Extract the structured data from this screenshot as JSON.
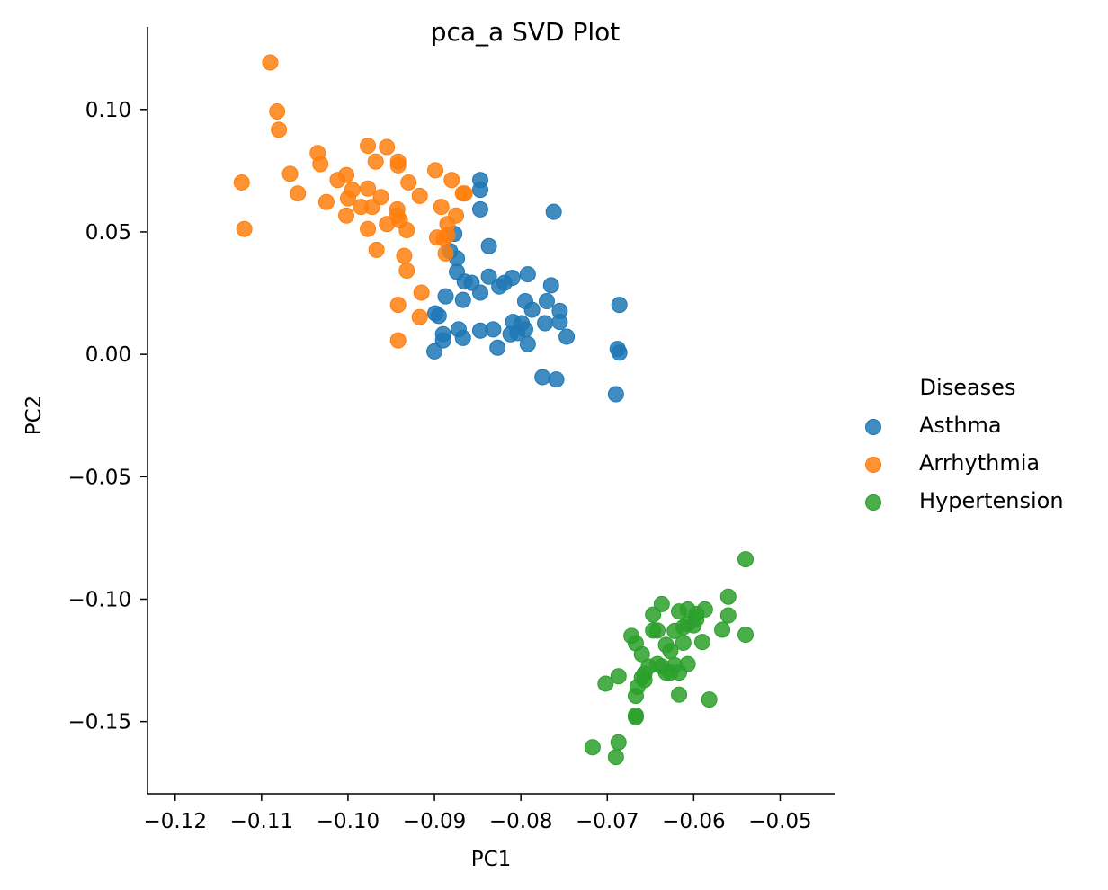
{
  "chart_data": {
    "type": "scatter",
    "title": "pca_a SVD Plot",
    "xlabel": "PC1",
    "ylabel": "PC2",
    "xlim": [
      -0.1232,
      -0.0437
    ],
    "ylim": [
      -0.1795,
      0.1337
    ],
    "xticks": [
      -0.12,
      -0.11,
      -0.1,
      -0.09,
      -0.08,
      -0.07,
      -0.06,
      -0.05
    ],
    "xtick_labels": [
      "−0.12",
      "−0.11",
      "−0.10",
      "−0.09",
      "−0.08",
      "−0.07",
      "−0.06",
      "−0.05"
    ],
    "yticks": [
      0.1,
      0.05,
      0.0,
      -0.05,
      -0.1,
      -0.15
    ],
    "ytick_labels": [
      "0.10",
      "0.05",
      "0.00",
      "−0.05",
      "−0.10",
      "−0.15"
    ],
    "grid": false,
    "legend": {
      "title": "Diseases",
      "position": "right"
    },
    "series": [
      {
        "name": "Asthma",
        "color": "#1f77b4",
        "points": [
          [
            -0.0847,
            0.0712
          ],
          [
            -0.0847,
            0.0672
          ],
          [
            -0.0847,
            0.0592
          ],
          [
            -0.0837,
            0.0442
          ],
          [
            -0.0762,
            0.0582
          ],
          [
            -0.0877,
            0.0492
          ],
          [
            -0.0882,
            0.0422
          ],
          [
            -0.0874,
            0.0392
          ],
          [
            -0.0874,
            0.0337
          ],
          [
            -0.0865,
            0.0297
          ],
          [
            -0.0857,
            0.0292
          ],
          [
            -0.0837,
            0.0317
          ],
          [
            -0.0847,
            0.0252
          ],
          [
            -0.0825,
            0.0277
          ],
          [
            -0.0819,
            0.0292
          ],
          [
            -0.081,
            0.0312
          ],
          [
            -0.0792,
            0.0327
          ],
          [
            -0.0765,
            0.0282
          ],
          [
            -0.077,
            0.0217
          ],
          [
            -0.0795,
            0.0217
          ],
          [
            -0.0787,
            0.0182
          ],
          [
            -0.0755,
            0.0177
          ],
          [
            -0.0755,
            0.0132
          ],
          [
            -0.0747,
            0.0072
          ],
          [
            -0.0772,
            0.0127
          ],
          [
            -0.0799,
            0.0127
          ],
          [
            -0.0809,
            0.0132
          ],
          [
            -0.0804,
            0.0087
          ],
          [
            -0.0795,
            0.0102
          ],
          [
            -0.0812,
            0.0082
          ],
          [
            -0.0792,
            0.0042
          ],
          [
            -0.0827,
            0.0027
          ],
          [
            -0.0832,
            0.0102
          ],
          [
            -0.0847,
            0.0097
          ],
          [
            -0.0867,
            0.0067
          ],
          [
            -0.0872,
            0.0102
          ],
          [
            -0.0867,
            0.0222
          ],
          [
            -0.0887,
            0.0237
          ],
          [
            -0.0895,
            0.0157
          ],
          [
            -0.0899,
            0.0167
          ],
          [
            -0.089,
            0.0082
          ],
          [
            -0.089,
            0.0057
          ],
          [
            -0.09,
            0.0012
          ],
          [
            -0.0775,
            -0.0093
          ],
          [
            -0.0759,
            -0.0103
          ],
          [
            -0.069,
            -0.0163
          ],
          [
            -0.0686,
            0.0202
          ],
          [
            -0.0688,
            0.0022
          ],
          [
            -0.0686,
            0.0007
          ]
        ]
      },
      {
        "name": "Arrhythmia",
        "color": "#ff7f0e",
        "points": [
          [
            -0.109,
            0.1192
          ],
          [
            -0.1082,
            0.0992
          ],
          [
            -0.108,
            0.0917
          ],
          [
            -0.1123,
            0.0702
          ],
          [
            -0.112,
            0.0512
          ],
          [
            -0.1067,
            0.0737
          ],
          [
            -0.1058,
            0.0657
          ],
          [
            -0.1035,
            0.0822
          ],
          [
            -0.1032,
            0.0777
          ],
          [
            -0.1025,
            0.0622
          ],
          [
            -0.1012,
            0.0712
          ],
          [
            -0.1002,
            0.0732
          ],
          [
            -0.0995,
            0.0672
          ],
          [
            -0.1,
            0.0637
          ],
          [
            -0.1002,
            0.0567
          ],
          [
            -0.0985,
            0.0602
          ],
          [
            -0.0977,
            0.0852
          ],
          [
            -0.0977,
            0.0677
          ],
          [
            -0.0968,
            0.0787
          ],
          [
            -0.0972,
            0.0602
          ],
          [
            -0.0977,
            0.0512
          ],
          [
            -0.0962,
            0.0642
          ],
          [
            -0.0955,
            0.0847
          ],
          [
            -0.0955,
            0.0532
          ],
          [
            -0.0967,
            0.0427
          ],
          [
            -0.0942,
            0.0787
          ],
          [
            -0.0942,
            0.0772
          ],
          [
            -0.093,
            0.0702
          ],
          [
            -0.0943,
            0.0592
          ],
          [
            -0.0943,
            0.0567
          ],
          [
            -0.094,
            0.0547
          ],
          [
            -0.0932,
            0.0507
          ],
          [
            -0.0917,
            0.0647
          ],
          [
            -0.0935,
            0.0402
          ],
          [
            -0.0932,
            0.0342
          ],
          [
            -0.0915,
            0.0252
          ],
          [
            -0.0942,
            0.0202
          ],
          [
            -0.0917,
            0.0152
          ],
          [
            -0.0942,
            0.0057
          ],
          [
            -0.0899,
            0.0752
          ],
          [
            -0.088,
            0.0712
          ],
          [
            -0.0867,
            0.0657
          ],
          [
            -0.0865,
            0.0657
          ],
          [
            -0.0892,
            0.0602
          ],
          [
            -0.0875,
            0.0567
          ],
          [
            -0.0885,
            0.0532
          ],
          [
            -0.0885,
            0.0487
          ],
          [
            -0.0897,
            0.0477
          ],
          [
            -0.0889,
            0.0472
          ],
          [
            -0.0887,
            0.0412
          ]
        ]
      },
      {
        "name": "Hypertension",
        "color": "#2ca02c",
        "points": [
          [
            -0.054,
            -0.0837
          ],
          [
            -0.056,
            -0.099
          ],
          [
            -0.056,
            -0.1066
          ],
          [
            -0.054,
            -0.1145
          ],
          [
            -0.0567,
            -0.1125
          ],
          [
            -0.0587,
            -0.1042
          ],
          [
            -0.059,
            -0.1175
          ],
          [
            -0.0597,
            -0.106
          ],
          [
            -0.0597,
            -0.1082
          ],
          [
            -0.06,
            -0.1107
          ],
          [
            -0.0607,
            -0.1102
          ],
          [
            -0.0607,
            -0.1042
          ],
          [
            -0.0612,
            -0.1115
          ],
          [
            -0.0617,
            -0.105
          ],
          [
            -0.0622,
            -0.113
          ],
          [
            -0.0627,
            -0.1212
          ],
          [
            -0.0632,
            -0.1187
          ],
          [
            -0.0637,
            -0.102
          ],
          [
            -0.0642,
            -0.1128
          ],
          [
            -0.0647,
            -0.1063
          ],
          [
            -0.0647,
            -0.1128
          ],
          [
            -0.0612,
            -0.1178
          ],
          [
            -0.0607,
            -0.1265
          ],
          [
            -0.0632,
            -0.13
          ],
          [
            -0.0637,
            -0.1275
          ],
          [
            -0.0642,
            -0.1265
          ],
          [
            -0.0652,
            -0.1275
          ],
          [
            -0.0657,
            -0.1305
          ],
          [
            -0.066,
            -0.132
          ],
          [
            -0.0665,
            -0.1358
          ],
          [
            -0.0667,
            -0.1395
          ],
          [
            -0.0672,
            -0.115
          ],
          [
            -0.0667,
            -0.118
          ],
          [
            -0.066,
            -0.1225
          ],
          [
            -0.0687,
            -0.1315
          ],
          [
            -0.0702,
            -0.1345
          ],
          [
            -0.0657,
            -0.133
          ],
          [
            -0.0627,
            -0.13
          ],
          [
            -0.0622,
            -0.127
          ],
          [
            -0.0617,
            -0.13
          ],
          [
            -0.0617,
            -0.139
          ],
          [
            -0.0582,
            -0.141
          ],
          [
            -0.0667,
            -0.1475
          ],
          [
            -0.0667,
            -0.1482
          ],
          [
            -0.0687,
            -0.1585
          ],
          [
            -0.0717,
            -0.1605
          ],
          [
            -0.069,
            -0.1645
          ]
        ]
      }
    ]
  }
}
